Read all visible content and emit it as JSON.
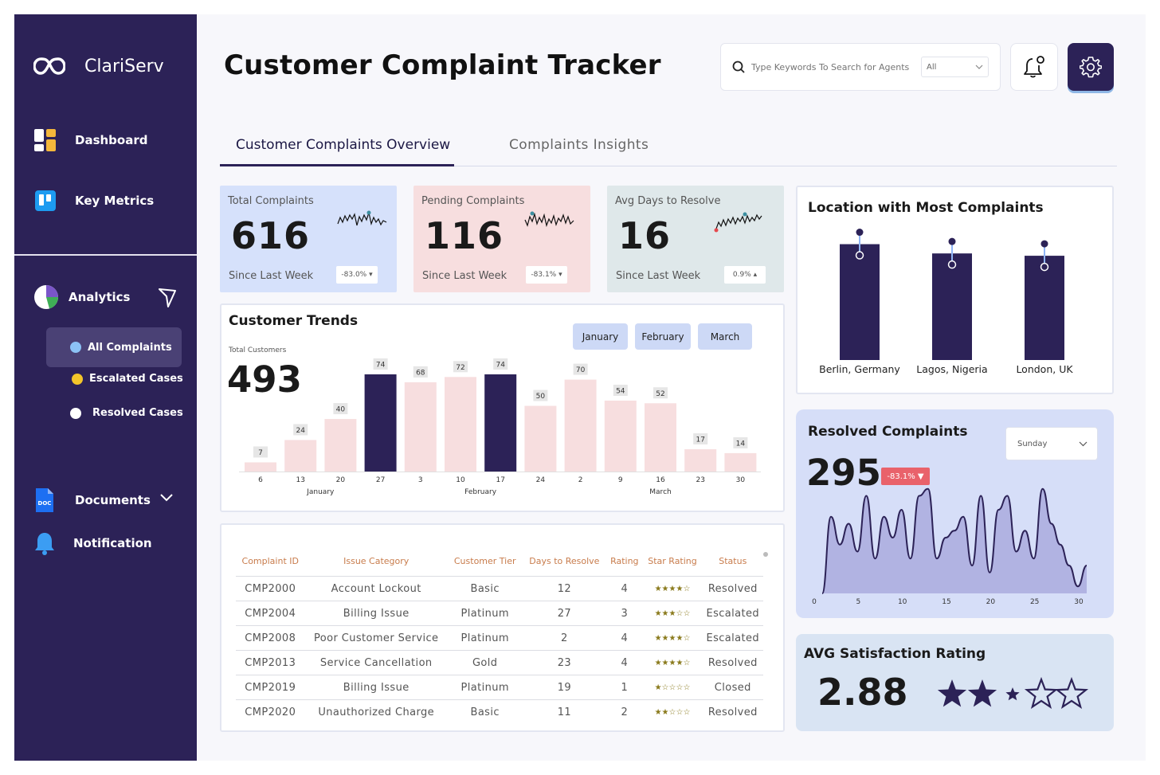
{
  "app": {
    "name": "ClariServ"
  },
  "sidebar": {
    "nav": [
      {
        "label": "Dashboard",
        "icon": "dashboard-icon"
      },
      {
        "label": "Key Metrics",
        "icon": "trello-icon"
      }
    ],
    "analytics": {
      "label": "Analytics",
      "icon": "pie-chart-icon"
    },
    "sub_items": [
      {
        "label": "All Complaints",
        "color": "#8cc2f5"
      },
      {
        "label": "Escalated Cases",
        "color": "#f3c52a"
      },
      {
        "label": "Resolved Cases",
        "color": "#ffffff"
      }
    ],
    "documents": {
      "label": "Documents",
      "icon_text": "DOC"
    },
    "notification": {
      "label": "Notification"
    }
  },
  "header": {
    "title": "Customer Complaint Tracker",
    "search_placeholder": "Type Keywords To Search for Agents",
    "search_filter": "All"
  },
  "tabs": [
    {
      "label": "Customer Complaints Overview",
      "active": true
    },
    {
      "label": "Complaints Insights",
      "active": false
    }
  ],
  "kpis": [
    {
      "label": "Total Complaints",
      "value": "616",
      "since": "Since Last Week",
      "badge": "-83.0% ▾",
      "bg": "#d6e1fb"
    },
    {
      "label": "Pending Complaints",
      "value": "116",
      "since": "Since Last Week",
      "badge": "-83.1% ▾",
      "bg": "#f7dedf"
    },
    {
      "label": "Avg Days to Resolve",
      "value": "16",
      "since": "Since Last Week",
      "badge": "0.9% ▴",
      "bg": "#dfe8ea"
    }
  ],
  "trends": {
    "title": "Customer Trends",
    "total_label": "Total Customers",
    "total_value": "493",
    "months": [
      "January",
      "February",
      "March"
    ]
  },
  "location": {
    "title": "Location with Most Complaints"
  },
  "resolved": {
    "title": "Resolved Complaints",
    "value": "295",
    "badge": "-83.1% ▼",
    "day_select": "Sunday"
  },
  "avg_rating": {
    "title": "AVG Satisfaction Rating",
    "value": "2.88",
    "rating": 2.88
  },
  "table": {
    "headers": [
      "Complaint ID",
      "Issue Category",
      "Customer Tier",
      "Days to Resolve",
      "Rating",
      "Star Rating",
      "Status"
    ],
    "rows": [
      [
        "CMP2000",
        "Account Lockout",
        "Basic",
        "12",
        "4",
        "★★★★☆",
        "Resolved"
      ],
      [
        "CMP2004",
        "Billing Issue",
        "Platinum",
        "27",
        "3",
        "★★★☆☆",
        "Escalated"
      ],
      [
        "CMP2008",
        "Poor Customer Service",
        "Platinum",
        "2",
        "4",
        "★★★★☆",
        "Escalated"
      ],
      [
        "CMP2013",
        "Service Cancellation",
        "Gold",
        "23",
        "4",
        "★★★★☆",
        "Resolved"
      ],
      [
        "CMP2019",
        "Billing Issue",
        "Platinum",
        "19",
        "1",
        "★☆☆☆☆",
        "Closed"
      ],
      [
        "CMP2020",
        "Unauthorized Charge",
        "Basic",
        "11",
        "2",
        "★★☆☆☆",
        "Resolved"
      ]
    ]
  },
  "colors": {
    "navy": "#2c2257",
    "pink": "#f7dedf",
    "accent_blue": "#cdd9f6"
  },
  "chart_data": [
    {
      "type": "bar",
      "title": "Customer Trends",
      "categories": [
        "6",
        "13",
        "20",
        "27",
        "3",
        "10",
        "17",
        "24",
        "2",
        "9",
        "16",
        "23",
        "30"
      ],
      "group_labels": [
        "January",
        "February",
        "March"
      ],
      "values": [
        7,
        24,
        40,
        74,
        68,
        72,
        74,
        50,
        70,
        54,
        52,
        17,
        14
      ],
      "highlight": [
        false,
        false,
        false,
        true,
        false,
        false,
        true,
        false,
        false,
        false,
        false,
        false,
        false
      ],
      "ylim": [
        0,
        80
      ]
    },
    {
      "type": "bar",
      "title": "Location with Most Complaints",
      "categories": [
        "Berlin, Germany",
        "Lagos, Nigeria",
        "London, UK"
      ],
      "values": [
        100,
        92,
        90
      ],
      "ylim": [
        0,
        110
      ]
    },
    {
      "type": "area",
      "title": "Resolved Complaints",
      "x_ticks": [
        "0",
        "5",
        "10",
        "15",
        "20",
        "25",
        "30"
      ],
      "x": [
        0,
        1,
        2,
        3,
        4,
        5,
        6,
        7,
        8,
        9,
        10,
        11,
        12,
        13,
        14,
        15,
        16,
        17,
        18,
        19,
        20,
        21,
        22,
        23,
        24,
        25,
        26,
        27,
        28,
        29,
        30
      ],
      "values": [
        0,
        11,
        7,
        10,
        6,
        14,
        5,
        11,
        8,
        12,
        5,
        14,
        15,
        5,
        8,
        9,
        11,
        4,
        14,
        3,
        12,
        14,
        6,
        9,
        5,
        15,
        10,
        7,
        4,
        1,
        4
      ],
      "ylim": [
        0,
        16
      ]
    }
  ]
}
